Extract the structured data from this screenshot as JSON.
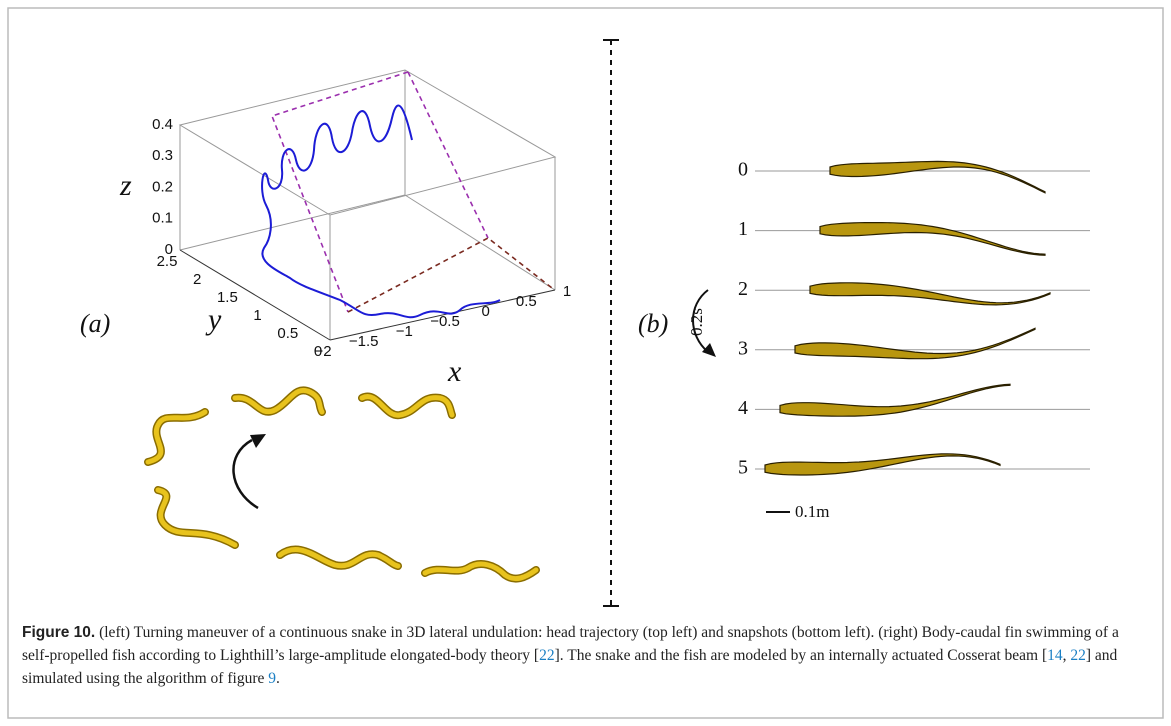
{
  "panel_a": {
    "label": "(a)",
    "z_axis": {
      "label": "z",
      "ticks": [
        "0",
        "0.1",
        "0.2",
        "0.3",
        "0.4"
      ]
    },
    "y_axis": {
      "label": "y",
      "ticks": [
        "0",
        "0.5",
        "1",
        "1.5",
        "2",
        "2.5"
      ]
    },
    "x_axis": {
      "label": "x",
      "ticks": [
        "−2",
        "−1.5",
        "−1",
        "−0.5",
        "0",
        "0.5",
        "1"
      ]
    }
  },
  "panel_b": {
    "label": "(b)",
    "frames": [
      "0",
      "1",
      "2",
      "3",
      "4",
      "5"
    ],
    "time_label": "0.2s",
    "scale_label": "0.1m"
  },
  "caption": {
    "label": "Figure 10.",
    "text_1": " (left) Turning maneuver of a continuous snake in 3D lateral undulation: head trajectory (top left) and snapshots (bottom left). (right) Body-caudal fin swimming of a self-propelled fish according to Lighthill’s large-amplitude elongated-body theory [",
    "ref_1": "22",
    "text_2": "]. The snake and the fish are modeled by an internally actuated Cosserat beam [",
    "ref_2": "14",
    "text_3": ", ",
    "ref_3": "22",
    "text_4": "] and simulated using the algorithm of figure ",
    "ref_4": "9",
    "text_5": "."
  }
}
